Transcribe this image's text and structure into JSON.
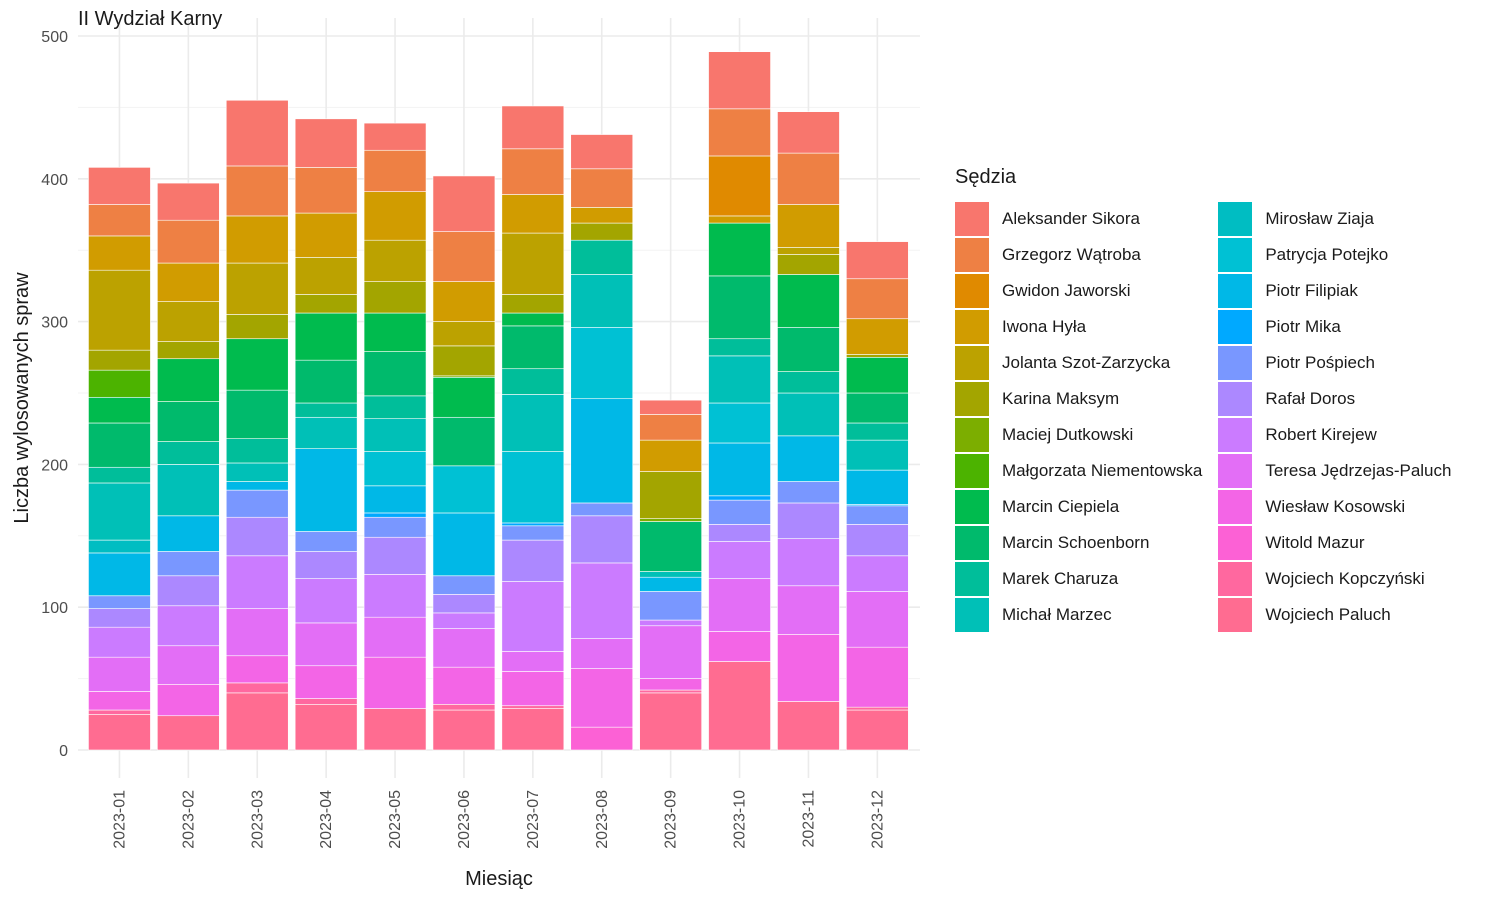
{
  "chart_data": {
    "type": "bar",
    "stacked": true,
    "title": "II Wydział Karny",
    "xlabel": "Miesiąc",
    "ylabel": "Liczba wylosowanych spraw",
    "ylim": [
      0,
      500
    ],
    "yticks": [
      0,
      100,
      200,
      300,
      400,
      500
    ],
    "grid": true,
    "legend_title": "Sędzia",
    "legend_position": "right",
    "categories": [
      "2023-01",
      "2023-02",
      "2023-03",
      "2023-04",
      "2023-05",
      "2023-06",
      "2023-07",
      "2023-08",
      "2023-09",
      "2023-10",
      "2023-11",
      "2023-12"
    ],
    "series": [
      {
        "name": "Wojciech Paluch",
        "color": "#FF6C91",
        "values": [
          25,
          24,
          40,
          32,
          29,
          28,
          29,
          0,
          40,
          62,
          34,
          28
        ]
      },
      {
        "name": "Wojciech Kopczyński",
        "color": "#FF689F",
        "values": [
          3,
          0,
          7,
          4,
          0,
          4,
          2,
          0,
          2,
          0,
          0,
          2
        ]
      },
      {
        "name": "Witold Mazur",
        "color": "#FC61D5",
        "values": [
          0,
          0,
          0,
          0,
          0,
          0,
          0,
          16,
          0,
          0,
          0,
          0
        ]
      },
      {
        "name": "Wiesław Kosowski",
        "color": "#F365E6",
        "values": [
          13,
          22,
          19,
          23,
          36,
          26,
          24,
          41,
          8,
          21,
          47,
          42
        ]
      },
      {
        "name": "Teresa Jędrzejas-Paluch",
        "color": "#E36EF6",
        "values": [
          24,
          27,
          33,
          30,
          28,
          27,
          14,
          21,
          37,
          37,
          34,
          39
        ]
      },
      {
        "name": "Robert Kirejew",
        "color": "#CB7BFF",
        "values": [
          21,
          28,
          37,
          31,
          30,
          11,
          49,
          53,
          4,
          26,
          33,
          25
        ]
      },
      {
        "name": "Rafał Doros",
        "color": "#AC88FF",
        "values": [
          13,
          21,
          27,
          19,
          26,
          13,
          29,
          33,
          0,
          12,
          25,
          22
        ]
      },
      {
        "name": "Piotr Pośpiech",
        "color": "#7997FF",
        "values": [
          9,
          17,
          19,
          14,
          14,
          13,
          10,
          9,
          20,
          17,
          15,
          13
        ]
      },
      {
        "name": "Piotr Mika",
        "color": "#00A9FF",
        "values": [
          0,
          0,
          0,
          0,
          3,
          0,
          2,
          0,
          0,
          3,
          0,
          1
        ]
      },
      {
        "name": "Piotr Filipiak",
        "color": "#00B8E7",
        "values": [
          30,
          25,
          6,
          58,
          19,
          44,
          0,
          73,
          10,
          37,
          32,
          24
        ]
      },
      {
        "name": "Patrycja Potejko",
        "color": "#00C1D4",
        "values": [
          0,
          0,
          0,
          0,
          24,
          33,
          50,
          50,
          0,
          28,
          0,
          0
        ]
      },
      {
        "name": "Mirosław Ziaja",
        "color": "#00BDC2",
        "values": [
          9,
          0,
          0,
          0,
          0,
          0,
          0,
          0,
          0,
          0,
          0,
          0
        ]
      },
      {
        "name": "Michał Marzec",
        "color": "#00C0B7",
        "values": [
          40,
          36,
          13,
          22,
          23,
          0,
          40,
          37,
          4,
          33,
          30,
          21
        ]
      },
      {
        "name": "Marek Charuza",
        "color": "#00BE9A",
        "values": [
          11,
          16,
          17,
          10,
          16,
          0,
          18,
          24,
          0,
          12,
          15,
          12
        ]
      },
      {
        "name": "Marcin Schoenborn",
        "color": "#00BA6C",
        "values": [
          31,
          28,
          34,
          30,
          31,
          34,
          30,
          0,
          35,
          44,
          31,
          21
        ]
      },
      {
        "name": "Marcin Ciepiela",
        "color": "#00BB4E",
        "values": [
          18,
          30,
          36,
          33,
          27,
          28,
          9,
          0,
          0,
          37,
          37,
          25
        ]
      },
      {
        "name": "Małgorzata Niementowska",
        "color": "#4CB300",
        "values": [
          19,
          0,
          0,
          0,
          0,
          0,
          0,
          0,
          0,
          0,
          0,
          0
        ]
      },
      {
        "name": "Maciej Dutkowski",
        "color": "#7CAE00",
        "values": [
          0,
          0,
          0,
          0,
          0,
          1,
          0,
          0,
          2,
          0,
          0,
          0
        ]
      },
      {
        "name": "Karina Maksym",
        "color": "#A3A500",
        "values": [
          14,
          12,
          17,
          13,
          22,
          21,
          13,
          12,
          33,
          0,
          14,
          2
        ]
      },
      {
        "name": "Jolanta Szot-Zarzycka",
        "color": "#BCA200",
        "values": [
          56,
          28,
          36,
          26,
          29,
          17,
          43,
          0,
          0,
          0,
          5,
          0
        ]
      },
      {
        "name": "Iwona Hyła",
        "color": "#D19C00",
        "values": [
          24,
          27,
          33,
          31,
          34,
          28,
          27,
          11,
          22,
          5,
          30,
          25
        ]
      },
      {
        "name": "Gwidon Jaworski",
        "color": "#E08A00",
        "values": [
          0,
          0,
          0,
          0,
          0,
          0,
          0,
          0,
          0,
          42,
          0,
          0
        ]
      },
      {
        "name": "Grzegorz Wątroba",
        "color": "#EE8044",
        "values": [
          22,
          30,
          35,
          32,
          29,
          35,
          32,
          27,
          18,
          33,
          36,
          28
        ]
      },
      {
        "name": "Aleksander Sikora",
        "color": "#F8766D",
        "values": [
          26,
          26,
          46,
          34,
          19,
          39,
          30,
          24,
          10,
          40,
          29,
          26
        ]
      }
    ]
  }
}
